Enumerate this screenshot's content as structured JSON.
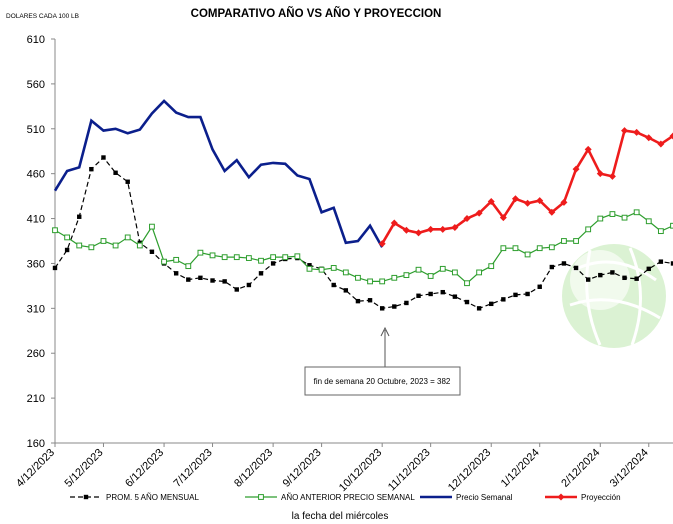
{
  "chart_data": {
    "type": "line",
    "title": "COMPARATIVO AÑO VS  AÑO Y PROYECCION",
    "y_axis_label": "DOLARES CADA 100 LB",
    "x_axis_label": "la fecha del miércoles",
    "annotation": "fin de semana 20 Octubre, 2023 = 382",
    "categories": [
      "4/12/2023",
      null,
      null,
      null,
      "5/12/2023",
      null,
      null,
      null,
      null,
      "6/12/2023",
      null,
      null,
      null,
      "7/12/2023",
      null,
      null,
      null,
      null,
      "8/12/2023",
      null,
      null,
      null,
      "9/12/2023",
      null,
      null,
      null,
      null,
      "10/12/2023",
      null,
      null,
      null,
      "11/12/2023",
      null,
      null,
      null,
      null,
      "12/12/2023",
      null,
      null,
      null,
      "1/12/2024",
      null,
      null,
      null,
      null,
      "2/12/2024",
      null,
      null,
      null,
      "3/12/2024",
      null,
      null
    ],
    "ylim": [
      160,
      610
    ],
    "yticks": [
      160,
      210,
      260,
      310,
      360,
      410,
      460,
      510,
      560,
      610
    ],
    "grid": false,
    "series": [
      {
        "name": "PROM. 5 AÑO MENSUAL",
        "color": "#000000",
        "marker": "square",
        "dash": true,
        "values": [
          355,
          375,
          412,
          465,
          478,
          461,
          451,
          383,
          373,
          360,
          349,
          342,
          344,
          341,
          340,
          331,
          336,
          349,
          360,
          365,
          366,
          358,
          354,
          336,
          330,
          318,
          319,
          310,
          312,
          316,
          324,
          326,
          328,
          323,
          317,
          310,
          315,
          320,
          325,
          326,
          334,
          356,
          360,
          355,
          342,
          347,
          350,
          344,
          343,
          354,
          362,
          360
        ]
      },
      {
        "name": "AÑO ANTERIOR PRECIO SEMANAL",
        "color": "#2e9e2e",
        "marker": "hollow-square",
        "dash": false,
        "values": [
          397,
          389,
          380,
          378,
          385,
          380,
          389,
          380,
          401,
          362,
          364,
          357,
          372,
          369,
          367,
          367,
          366,
          363,
          367,
          367,
          368,
          354,
          353,
          355,
          350,
          344,
          340,
          340,
          344,
          347,
          353,
          346,
          354,
          350,
          338,
          350,
          357,
          377,
          377,
          370,
          377,
          378,
          385,
          385,
          398,
          410,
          415,
          411,
          417,
          407,
          396,
          402
        ]
      },
      {
        "name": "Precio Semanal",
        "color": "#0b1f8c",
        "marker": "none",
        "dash": false,
        "values": [
          441,
          463,
          467,
          519,
          508,
          510,
          505,
          509,
          527,
          541,
          528,
          523,
          523,
          487,
          463,
          475,
          456,
          470,
          472,
          471,
          458,
          454,
          417,
          422,
          383,
          385,
          402,
          378,
          null,
          null,
          null,
          null,
          null,
          null,
          null,
          null,
          null,
          null,
          null,
          null,
          null,
          null,
          null,
          null,
          null,
          null,
          null,
          null,
          null,
          null,
          null,
          null
        ]
      },
      {
        "name": "Proyección",
        "color": "#ee1c1c",
        "marker": "diamond",
        "dash": false,
        "values": [
          null,
          null,
          null,
          null,
          null,
          null,
          null,
          null,
          null,
          null,
          null,
          null,
          null,
          null,
          null,
          null,
          null,
          null,
          null,
          null,
          null,
          null,
          null,
          null,
          null,
          null,
          null,
          382,
          405,
          397,
          394,
          398,
          398,
          400,
          410,
          416,
          429,
          411,
          432,
          427,
          430,
          417,
          428,
          465,
          487,
          460,
          457,
          508,
          506,
          500,
          493,
          502
        ]
      }
    ]
  }
}
